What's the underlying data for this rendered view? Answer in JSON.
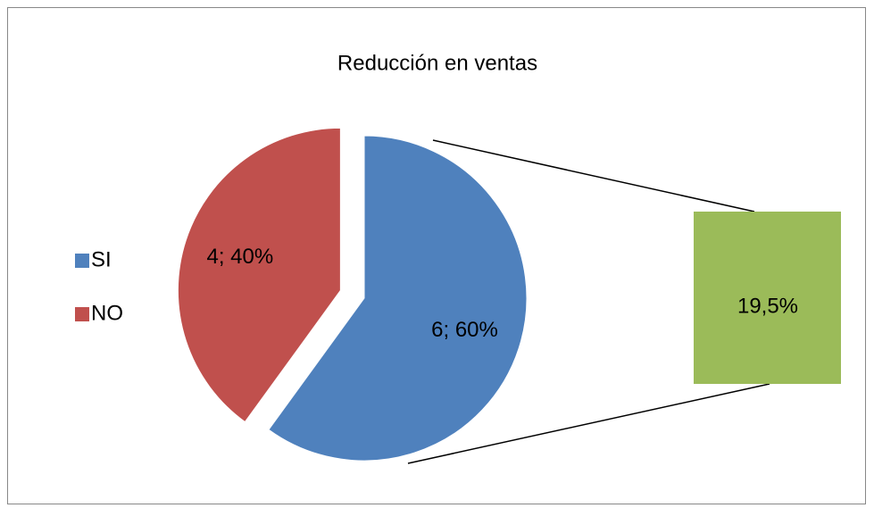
{
  "chart_data": {
    "type": "pie",
    "title": "Reducción en ventas",
    "categories": [
      "SI",
      "NO"
    ],
    "values": [
      6,
      4
    ],
    "value_labels": [
      "6; 60%",
      "4; 40%"
    ],
    "colors": [
      "#4f81bd",
      "#c0504d"
    ],
    "legend": "left",
    "secondary": {
      "values": [
        19.5
      ],
      "value_labels": [
        "19,5%"
      ],
      "color": "#9bbb59"
    }
  }
}
